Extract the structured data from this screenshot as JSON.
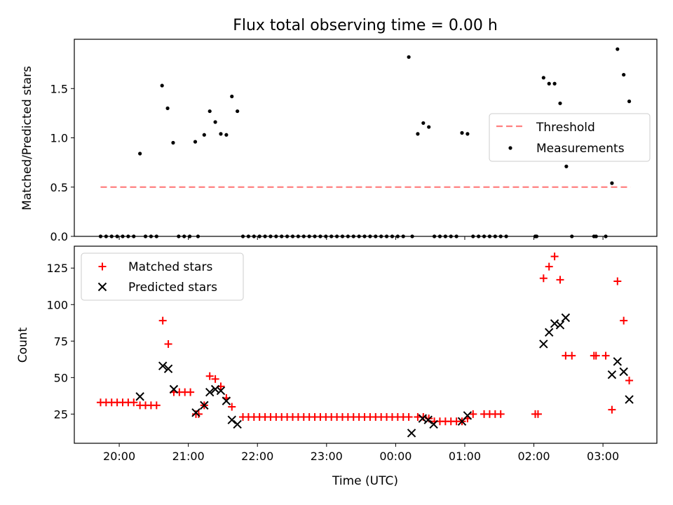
{
  "chart_data": [
    {
      "type": "scatter",
      "title": "Flux total observing time = 0.00 h",
      "xlabel": "",
      "ylabel": "Matched/Predicted stars",
      "ylim": [
        0,
        2.0
      ],
      "yticks": [
        "0.0",
        "0.5",
        "1.0",
        "1.5"
      ],
      "ytick_values": [
        0,
        0.5,
        1.0,
        1.5
      ],
      "xlim_hours": [
        19.35,
        27.78
      ],
      "legend_position": "right",
      "threshold": {
        "name": "Threshold",
        "y": 0.5,
        "x_start": 19.73,
        "x_end": 27.4,
        "color": "#ff8080"
      },
      "series": [
        {
          "name": "Measurements",
          "color": "#000000",
          "marker": "dot",
          "x": [
            19.73,
            19.81,
            19.89,
            19.97,
            20.05,
            20.13,
            20.21,
            20.3,
            20.38,
            20.46,
            20.54,
            20.62,
            20.7,
            20.78,
            20.86,
            20.94,
            21.02,
            21.1,
            21.14,
            21.23,
            21.31,
            21.39,
            21.47,
            21.55,
            21.63,
            21.71,
            21.79,
            21.87,
            21.95,
            22.03,
            22.11,
            22.19,
            22.27,
            22.35,
            22.43,
            22.51,
            22.59,
            22.67,
            22.75,
            22.83,
            22.91,
            22.99,
            23.07,
            23.15,
            23.23,
            23.31,
            23.39,
            23.47,
            23.55,
            23.63,
            23.71,
            23.79,
            23.87,
            23.95,
            24.03,
            24.11,
            24.19,
            24.24,
            24.32,
            24.4,
            24.48,
            24.56,
            24.64,
            24.72,
            24.8,
            24.88,
            24.96,
            25.04,
            25.12,
            25.2,
            25.28,
            25.36,
            25.44,
            25.52,
            25.6,
            26.02,
            26.04,
            26.14,
            26.22,
            26.3,
            26.38,
            26.47,
            26.55,
            26.87,
            26.9,
            27.04,
            27.13,
            27.21,
            27.3,
            27.38
          ],
          "y": [
            0,
            0,
            0,
            0,
            0,
            0,
            0,
            0.84,
            0,
            0,
            0,
            1.53,
            1.3,
            0.95,
            0,
            0,
            0,
            0.96,
            0,
            1.03,
            1.27,
            1.16,
            1.04,
            1.03,
            1.42,
            1.27,
            0,
            0,
            0,
            0,
            0,
            0,
            0,
            0,
            0,
            0,
            0,
            0,
            0,
            0,
            0,
            0,
            0,
            0,
            0,
            0,
            0,
            0,
            0,
            0,
            0,
            0,
            0,
            0,
            0,
            0,
            1.82,
            0,
            1.04,
            1.15,
            1.11,
            0,
            0,
            0,
            0,
            0,
            1.05,
            1.04,
            0,
            0,
            0,
            0,
            0,
            0,
            0,
            0,
            0,
            1.61,
            1.55,
            1.55,
            1.35,
            0.71,
            0,
            0,
            0,
            0,
            0.54,
            1.9,
            1.64,
            1.37
          ]
        }
      ]
    },
    {
      "type": "scatter",
      "title": "",
      "xlabel": "Time (UTC)",
      "ylabel": "Count",
      "ylim": [
        5,
        140
      ],
      "yticks": [
        "25",
        "50",
        "75",
        "100",
        "125"
      ],
      "ytick_values": [
        25,
        50,
        75,
        100,
        125
      ],
      "xlim_hours": [
        19.35,
        27.78
      ],
      "xticks": [
        "20:00",
        "21:00",
        "22:00",
        "23:00",
        "00:00",
        "01:00",
        "02:00",
        "03:00"
      ],
      "xtick_hours": [
        20,
        21,
        22,
        23,
        24,
        25,
        26,
        27
      ],
      "legend_position": "top-left",
      "series": [
        {
          "name": "Matched stars",
          "color": "#ff0000",
          "marker": "plus",
          "x": [
            19.73,
            19.81,
            19.89,
            19.97,
            20.05,
            20.13,
            20.21,
            20.3,
            20.38,
            20.46,
            20.54,
            20.63,
            20.71,
            20.79,
            20.87,
            20.95,
            21.03,
            21.11,
            21.15,
            21.23,
            21.31,
            21.39,
            21.47,
            21.55,
            21.63,
            21.79,
            21.87,
            21.95,
            22.03,
            22.11,
            22.19,
            22.27,
            22.35,
            22.43,
            22.51,
            22.59,
            22.67,
            22.75,
            22.83,
            22.91,
            22.99,
            23.07,
            23.15,
            23.23,
            23.31,
            23.39,
            23.47,
            23.55,
            23.63,
            23.71,
            23.79,
            23.87,
            23.95,
            24.03,
            24.11,
            24.19,
            24.32,
            24.4,
            24.48,
            24.56,
            24.64,
            24.72,
            24.8,
            24.88,
            24.96,
            25.04,
            25.12,
            25.28,
            25.36,
            25.44,
            25.52,
            26.02,
            26.06,
            26.14,
            26.22,
            26.3,
            26.38,
            26.46,
            26.55,
            26.87,
            26.9,
            27.04,
            27.13,
            27.21,
            27.3,
            27.38
          ],
          "y": [
            33,
            33,
            33,
            33,
            33,
            33,
            33,
            31,
            31,
            31,
            31,
            89,
            73,
            40,
            40,
            40,
            40,
            25,
            25,
            31,
            51,
            49,
            44,
            36,
            30,
            23,
            23,
            23,
            23,
            23,
            23,
            23,
            23,
            23,
            23,
            23,
            23,
            23,
            23,
            23,
            23,
            23,
            23,
            23,
            23,
            23,
            23,
            23,
            23,
            23,
            23,
            23,
            23,
            23,
            23,
            23,
            23,
            23,
            22,
            20,
            20,
            20,
            20,
            20,
            20,
            22,
            25,
            25,
            25,
            25,
            25,
            25,
            25,
            118,
            126,
            133,
            117,
            65,
            65,
            65,
            65,
            65,
            28,
            116,
            89,
            48
          ]
        },
        {
          "name": "Predicted stars",
          "color": "#000000",
          "marker": "x",
          "x": [
            20.3,
            20.63,
            20.71,
            20.79,
            21.11,
            21.23,
            21.31,
            21.39,
            21.47,
            21.55,
            21.63,
            21.71,
            24.23,
            24.39,
            24.47,
            24.55,
            24.96,
            25.04,
            26.14,
            26.22,
            26.3,
            26.38,
            26.46,
            27.13,
            27.21,
            27.3,
            27.38
          ],
          "y": [
            37,
            58,
            56,
            42,
            26,
            31,
            40,
            42,
            41,
            34,
            21,
            18,
            12,
            22,
            21,
            18,
            20,
            24,
            73,
            81,
            87,
            86,
            91,
            52,
            61,
            54,
            35
          ]
        }
      ]
    }
  ]
}
